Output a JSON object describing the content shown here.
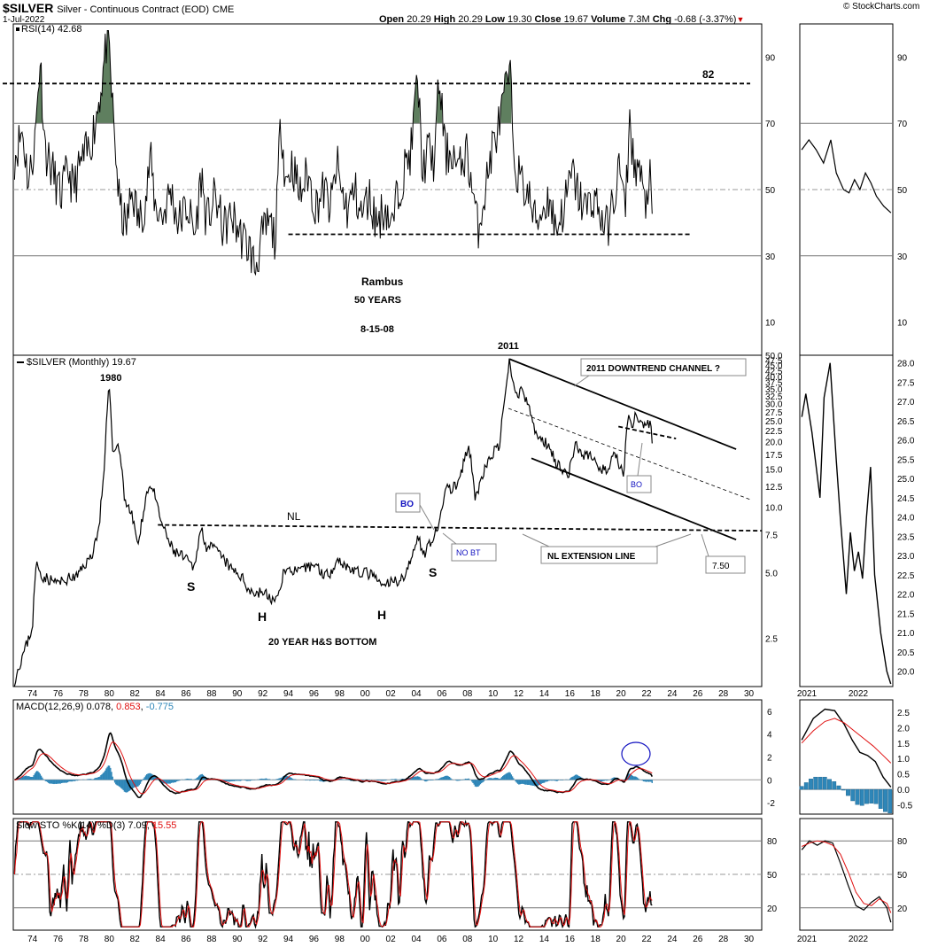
{
  "header": {
    "symbol": "$SILVER",
    "name": "Silver - Continuous Contract (EOD)",
    "exchange": "CME",
    "date": "1-Jul-2022",
    "open_label": "Open",
    "open": "20.29",
    "high_label": "High",
    "high": "20.29",
    "low_label": "Low",
    "low": "19.30",
    "close_label": "Close",
    "close": "19.67",
    "volume_label": "Volume",
    "volume": "7.3M",
    "chg_label": "Chg",
    "chg": "-0.68 (-3.37%)",
    "brand": "© StockCharts.com"
  },
  "colors": {
    "price": "#000000",
    "rsi_fill": "#5f7f5f",
    "macd_signal": "#e01010",
    "macd_hist": "#2e86b8",
    "sto_d": "#e01010",
    "label_blue": "#1010c0",
    "grid": "#888888"
  },
  "chart_data": [
    {
      "type": "line",
      "title": "RSI(14) 42.68",
      "legend": "RSI(14)",
      "legend_value": "42.68",
      "y_ticks": [
        10,
        30,
        50,
        70,
        90
      ],
      "ylim": [
        0,
        100
      ],
      "x_range": [
        1972.5,
        2031
      ],
      "keypoints": [
        [
          1972.6,
          60
        ],
        [
          1973.2,
          68
        ],
        [
          1973.7,
          52
        ],
        [
          1974.2,
          65
        ],
        [
          1974.6,
          90
        ],
        [
          1975.0,
          62
        ],
        [
          1975.6,
          55
        ],
        [
          1976.2,
          48
        ],
        [
          1976.8,
          56
        ],
        [
          1977.2,
          50
        ],
        [
          1977.8,
          58
        ],
        [
          1978.4,
          62
        ],
        [
          1978.9,
          70
        ],
        [
          1979.4,
          82
        ],
        [
          1979.9,
          98
        ],
        [
          1980.3,
          72
        ],
        [
          1980.8,
          45
        ],
        [
          1981.3,
          38
        ],
        [
          1981.8,
          50
        ],
        [
          1982.3,
          40
        ],
        [
          1982.9,
          48
        ],
        [
          1983.2,
          60
        ],
        [
          1983.6,
          45
        ],
        [
          1984.2,
          42
        ],
        [
          1984.8,
          50
        ],
        [
          1985.4,
          40
        ],
        [
          1986.1,
          45
        ],
        [
          1986.7,
          36
        ],
        [
          1987.2,
          55
        ],
        [
          1987.6,
          40
        ],
        [
          1988.3,
          48
        ],
        [
          1988.9,
          38
        ],
        [
          1989.6,
          42
        ],
        [
          1990.3,
          36
        ],
        [
          1991.0,
          32
        ],
        [
          1991.4,
          26
        ],
        [
          1991.9,
          35
        ],
        [
          1992.5,
          40
        ],
        [
          1993.0,
          35
        ],
        [
          1993.4,
          72
        ],
        [
          1993.8,
          52
        ],
        [
          1994.3,
          58
        ],
        [
          1994.9,
          48
        ],
        [
          1995.5,
          55
        ],
        [
          1996.1,
          45
        ],
        [
          1996.8,
          50
        ],
        [
          1997.3,
          44
        ],
        [
          1997.8,
          58
        ],
        [
          1998.1,
          50
        ],
        [
          1998.6,
          44
        ],
        [
          1999.2,
          50
        ],
        [
          1999.7,
          42
        ],
        [
          2000.3,
          48
        ],
        [
          2000.9,
          40
        ],
        [
          2001.6,
          45
        ],
        [
          2002.1,
          38
        ],
        [
          2002.5,
          48
        ],
        [
          2003.0,
          55
        ],
        [
          2003.6,
          62
        ],
        [
          2004.1,
          84
        ],
        [
          2004.5,
          55
        ],
        [
          2004.9,
          62
        ],
        [
          2005.4,
          58
        ],
        [
          2005.8,
          84
        ],
        [
          2006.3,
          60
        ],
        [
          2006.8,
          62
        ],
        [
          2007.3,
          55
        ],
        [
          2007.9,
          62
        ],
        [
          2008.4,
          50
        ],
        [
          2008.8,
          38
        ],
        [
          2009.4,
          50
        ],
        [
          2009.9,
          62
        ],
        [
          2010.5,
          70
        ],
        [
          2010.9,
          78
        ],
        [
          2011.3,
          86
        ],
        [
          2011.7,
          58
        ],
        [
          2012.2,
          52
        ],
        [
          2012.8,
          48
        ],
        [
          2013.3,
          40
        ],
        [
          2013.9,
          44
        ],
        [
          2014.4,
          48
        ],
        [
          2014.9,
          38
        ],
        [
          2015.5,
          44
        ],
        [
          2016.2,
          55
        ],
        [
          2016.7,
          48
        ],
        [
          2017.3,
          44
        ],
        [
          2017.9,
          48
        ],
        [
          2018.4,
          42
        ],
        [
          2018.9,
          38
        ],
        [
          2019.5,
          48
        ],
        [
          2019.9,
          58
        ],
        [
          2020.3,
          42
        ],
        [
          2020.7,
          72
        ],
        [
          2021.0,
          56
        ],
        [
          2021.3,
          58
        ],
        [
          2021.6,
          52
        ],
        [
          2021.9,
          44
        ],
        [
          2022.2,
          55
        ],
        [
          2022.5,
          42.68
        ]
      ],
      "fill_above": 70,
      "horizontal_lines": [
        {
          "y": 82,
          "label": "82",
          "style": "dashed"
        },
        {
          "y": 36.5,
          "style": "dashed",
          "x_from": 1994,
          "x_to": 2025.5
        }
      ],
      "annotations": [
        "Rambus",
        "50 YEARS",
        "8-15-08"
      ]
    },
    {
      "type": "line",
      "title": "$SILVER (Monthly) 19.67",
      "legend": "$SILVER (Monthly)",
      "legend_value": "19.67",
      "y_scale": "log",
      "y_ticks": [
        2.5,
        5.0,
        7.5,
        10.0,
        12.5,
        15.0,
        17.5,
        20.0,
        22.5,
        25.0,
        27.5,
        30.0,
        32.5,
        35.0,
        37.5,
        40.0,
        42.5,
        45.0,
        47.5,
        50.0
      ],
      "ylim": [
        1.5,
        50
      ],
      "x_ticks": [
        "74",
        "76",
        "78",
        "80",
        "82",
        "84",
        "86",
        "88",
        "90",
        "92",
        "94",
        "96",
        "98",
        "00",
        "02",
        "04",
        "06",
        "08",
        "10",
        "12",
        "14",
        "16",
        "18",
        "20",
        "22",
        "24",
        "26",
        "28",
        "30"
      ],
      "keypoints": [
        [
          1972.6,
          1.6
        ],
        [
          1973.0,
          1.9
        ],
        [
          1973.5,
          2.3
        ],
        [
          1974.0,
          2.8
        ],
        [
          1974.3,
          5.5
        ],
        [
          1974.8,
          4.8
        ],
        [
          1975.5,
          4.6
        ],
        [
          1976.2,
          4.5
        ],
        [
          1976.8,
          4.7
        ],
        [
          1977.5,
          4.8
        ],
        [
          1978.0,
          5.4
        ],
        [
          1978.6,
          5.9
        ],
        [
          1979.2,
          8.0
        ],
        [
          1979.6,
          14.0
        ],
        [
          1980.0,
          36.0
        ],
        [
          1980.3,
          17.0
        ],
        [
          1980.7,
          20.0
        ],
        [
          1981.2,
          11.0
        ],
        [
          1981.8,
          9.0
        ],
        [
          1982.3,
          6.5
        ],
        [
          1982.9,
          11.5
        ],
        [
          1983.3,
          12.8
        ],
        [
          1983.9,
          9.2
        ],
        [
          1984.4,
          7.5
        ],
        [
          1985.0,
          6.3
        ],
        [
          1985.6,
          6.0
        ],
        [
          1986.2,
          5.6
        ],
        [
          1986.6,
          5.2
        ],
        [
          1987.2,
          8.0
        ],
        [
          1987.6,
          6.6
        ],
        [
          1988.3,
          6.4
        ],
        [
          1988.9,
          5.8
        ],
        [
          1989.5,
          5.2
        ],
        [
          1990.2,
          4.9
        ],
        [
          1990.8,
          4.3
        ],
        [
          1991.4,
          4.0
        ],
        [
          1992.0,
          4.1
        ],
        [
          1992.6,
          3.8
        ],
        [
          1993.1,
          3.7
        ],
        [
          1993.6,
          5.0
        ],
        [
          1994.2,
          5.2
        ],
        [
          1994.9,
          5.0
        ],
        [
          1995.5,
          5.3
        ],
        [
          1996.1,
          5.5
        ],
        [
          1996.6,
          5.0
        ],
        [
          1997.2,
          4.9
        ],
        [
          1997.8,
          5.8
        ],
        [
          1998.3,
          5.5
        ],
        [
          1998.9,
          5.2
        ],
        [
          1999.5,
          5.0
        ],
        [
          2000.1,
          5.0
        ],
        [
          2000.7,
          4.8
        ],
        [
          2001.3,
          4.3
        ],
        [
          2001.9,
          4.5
        ],
        [
          2002.5,
          4.6
        ],
        [
          2003.0,
          4.8
        ],
        [
          2003.6,
          5.6
        ],
        [
          2004.1,
          7.5
        ],
        [
          2004.6,
          6.0
        ],
        [
          2005.2,
          7.2
        ],
        [
          2005.8,
          8.0
        ],
        [
          2006.3,
          12.5
        ],
        [
          2006.8,
          12.0
        ],
        [
          2007.4,
          13.4
        ],
        [
          2008.1,
          19.0
        ],
        [
          2008.6,
          11.0
        ],
        [
          2009.2,
          14.0
        ],
        [
          2009.9,
          17.5
        ],
        [
          2010.5,
          19.0
        ],
        [
          2010.9,
          30.0
        ],
        [
          2011.3,
          47.0
        ],
        [
          2011.7,
          33.0
        ],
        [
          2012.2,
          34.0
        ],
        [
          2012.7,
          30.0
        ],
        [
          2013.3,
          22.0
        ],
        [
          2013.9,
          20.0
        ],
        [
          2014.4,
          19.5
        ],
        [
          2014.9,
          16.0
        ],
        [
          2015.5,
          15.0
        ],
        [
          2015.9,
          14.0
        ],
        [
          2016.5,
          20.0
        ],
        [
          2016.9,
          17.0
        ],
        [
          2017.4,
          17.5
        ],
        [
          2017.9,
          16.5
        ],
        [
          2018.5,
          15.0
        ],
        [
          2018.9,
          14.5
        ],
        [
          2019.5,
          17.5
        ],
        [
          2020.2,
          14.0
        ],
        [
          2020.6,
          27.0
        ],
        [
          2020.9,
          24.0
        ],
        [
          2021.2,
          27.5
        ],
        [
          2021.6,
          23.5
        ],
        [
          2021.9,
          23.0
        ],
        [
          2022.3,
          24.5
        ],
        [
          2022.5,
          19.67
        ]
      ],
      "trendlines": [
        {
          "name": "NL",
          "points": [
            [
              1983.8,
              8.3
            ],
            [
              2031,
              7.8
            ]
          ],
          "style": "dashed"
        },
        {
          "name": "2011 DOWNTREND CHANNEL ?",
          "points": [
            [
              2011.3,
              48.0
            ],
            [
              2029,
              18.5
            ]
          ],
          "style": "solid"
        },
        {
          "name": "lower channel",
          "points": [
            [
              2013,
              16.8
            ],
            [
              2029,
              7.1
            ]
          ],
          "style": "solid"
        },
        {
          "name": "midline",
          "points": [
            [
              2011.2,
              28.5
            ],
            [
              2030.2,
              10.8
            ]
          ],
          "style": "thin-dashed"
        },
        {
          "name": "short dashed",
          "points": [
            [
              2019.8,
              23.5
            ],
            [
              2024.3,
              20.7
            ]
          ],
          "style": "dashed"
        }
      ],
      "annotations": {
        "peak_1980": "1980",
        "peak_2011": "2011",
        "nl": "NL",
        "s_left": "S",
        "h_left": "H",
        "h_right": "H",
        "s_right": "S",
        "hs_bottom": "20 YEAR H&S BOTTOM",
        "bo_left": "BO",
        "no_bt": "NO BT",
        "bo_right": "BO",
        "channel": "2011 DOWNTREND CHANNEL ?",
        "nl_extension": "NL EXTENSION LINE",
        "target": "7.50"
      }
    },
    {
      "type": "line",
      "title": "MACD(12,26,9) 0.078, 0.853, -0.775",
      "legend": "MACD(12,26,9)",
      "values": {
        "macd": "0.078",
        "signal": "0.853",
        "hist": "-0.775"
      },
      "y_ticks": [
        -2,
        0,
        2,
        4,
        6
      ],
      "ylim": [
        -3,
        7
      ]
    },
    {
      "type": "line",
      "title": "Slow STO %K(14) %D(3) 7.09, 15.55",
      "legend": "Slow STO %K(14) %D(3)",
      "values": {
        "k": "7.09",
        "d": "15.55"
      },
      "y_ticks": [
        20,
        50,
        80
      ],
      "ylim": [
        0,
        100
      ]
    },
    {
      "type": "line",
      "title": "Inset RSI",
      "y_ticks": [
        10,
        30,
        50,
        70,
        90
      ],
      "ylim": [
        0,
        100
      ],
      "x_ticks": [
        "2021",
        "2022"
      ],
      "keypoints": [
        [
          2020.5,
          62
        ],
        [
          2020.7,
          65
        ],
        [
          2020.9,
          62
        ],
        [
          2021.1,
          58
        ],
        [
          2021.3,
          65
        ],
        [
          2021.45,
          55
        ],
        [
          2021.65,
          50
        ],
        [
          2021.8,
          49
        ],
        [
          2021.95,
          53
        ],
        [
          2022.1,
          50
        ],
        [
          2022.25,
          55
        ],
        [
          2022.4,
          52
        ],
        [
          2022.55,
          48
        ],
        [
          2022.75,
          45
        ],
        [
          2022.95,
          43
        ]
      ]
    },
    {
      "type": "line",
      "title": "Inset price",
      "y_ticks": [
        20.0,
        20.5,
        21.0,
        21.5,
        22.0,
        22.5,
        23.0,
        23.5,
        24.0,
        24.5,
        25.0,
        25.5,
        26.0,
        26.5,
        27.0,
        27.5,
        28.0
      ],
      "ylim": [
        19.6,
        28.2
      ],
      "keypoints": [
        [
          2020.5,
          26.6
        ],
        [
          2020.6,
          27.2
        ],
        [
          2020.75,
          26.2
        ],
        [
          2020.95,
          24.5
        ],
        [
          2021.05,
          27.1
        ],
        [
          2021.2,
          28.0
        ],
        [
          2021.35,
          25.5
        ],
        [
          2021.45,
          24.0
        ],
        [
          2021.6,
          22.0
        ],
        [
          2021.7,
          23.6
        ],
        [
          2021.8,
          22.6
        ],
        [
          2021.9,
          23.1
        ],
        [
          2022.0,
          22.4
        ],
        [
          2022.1,
          24.0
        ],
        [
          2022.2,
          25.3
        ],
        [
          2022.3,
          22.5
        ],
        [
          2022.45,
          21.0
        ],
        [
          2022.6,
          20.0
        ],
        [
          2022.7,
          19.67
        ]
      ]
    },
    {
      "type": "line",
      "title": "Inset MACD",
      "y_ticks": [
        -0.5,
        0.0,
        0.5,
        1.0,
        1.5,
        2.0,
        2.5
      ],
      "ylim": [
        -0.8,
        2.9
      ]
    },
    {
      "type": "line",
      "title": "Inset Slow STO",
      "y_ticks": [
        20,
        50,
        80
      ],
      "ylim": [
        0,
        100
      ]
    }
  ]
}
